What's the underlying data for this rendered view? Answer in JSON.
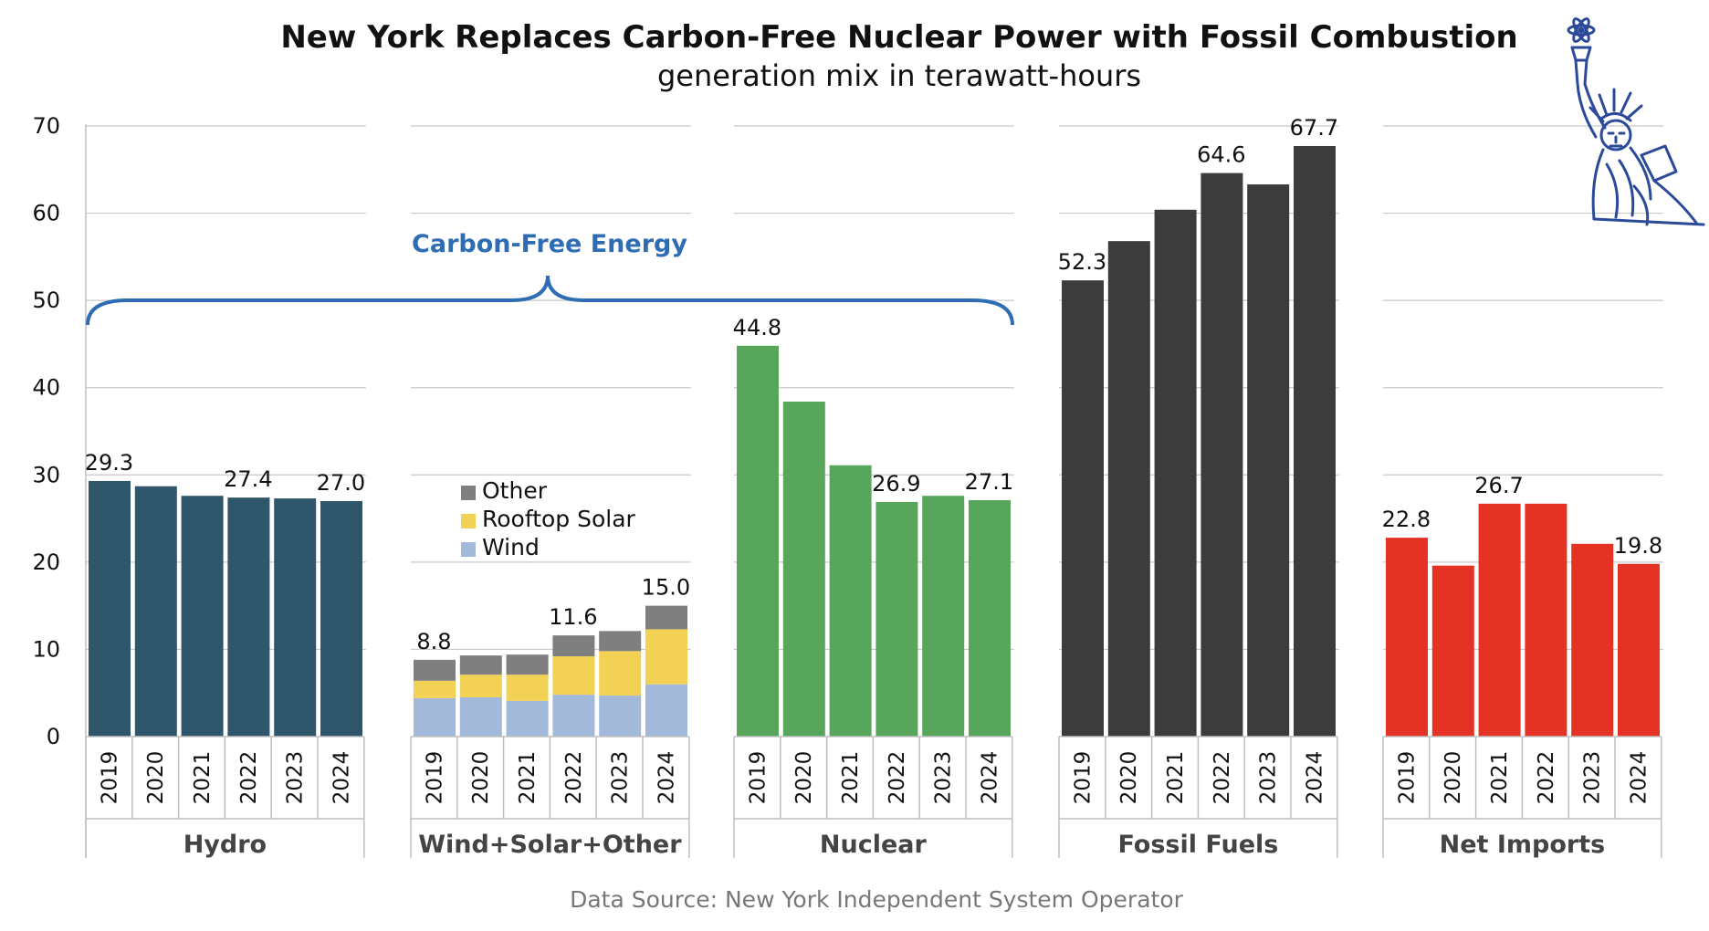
{
  "title": "New York Replaces Carbon-Free Nuclear Power with Fossil Combustion",
  "subtitle": "generation mix in terawatt-hours",
  "source": "Data Source: New York Independent System Operator",
  "annotation": {
    "text": "Carbon-Free Energy",
    "color": "#2E6DB4"
  },
  "logo": {
    "icon": "statue-of-liberty-atom-icon",
    "color": "#2C4A9A"
  },
  "chart_data": {
    "type": "bar",
    "ylim": [
      0,
      70
    ],
    "yticks": [
      "0",
      "10",
      "20",
      "30",
      "40",
      "50",
      "60",
      "70"
    ],
    "grid": true,
    "years": [
      "2019",
      "2020",
      "2021",
      "2022",
      "2023",
      "2024"
    ],
    "groups": [
      {
        "name": "Hydro",
        "color": "#2F566B",
        "values": [
          29.3,
          28.7,
          27.6,
          27.4,
          27.3,
          27.0
        ],
        "labels": [
          "29.3",
          "",
          "",
          "27.4",
          "",
          "27.0"
        ]
      },
      {
        "name": "Wind+Solar+Other",
        "stacked": true,
        "series": [
          {
            "name": "Wind",
            "color": "#A3B9DA",
            "values": [
              4.4,
              4.5,
              4.1,
              4.8,
              4.7,
              6.0
            ]
          },
          {
            "name": "Rooftop Solar",
            "color": "#F3D155",
            "values": [
              2.0,
              2.6,
              3.0,
              4.4,
              5.1,
              6.3
            ]
          },
          {
            "name": "Other",
            "color": "#7F7F7F",
            "values": [
              2.4,
              2.2,
              2.3,
              2.4,
              2.3,
              2.7
            ]
          }
        ],
        "labels": [
          "8.8",
          "",
          "",
          "11.6",
          "",
          "15.0"
        ]
      },
      {
        "name": "Nuclear",
        "color": "#58A65C",
        "values": [
          44.8,
          38.4,
          31.1,
          26.9,
          27.6,
          27.1
        ],
        "labels": [
          "44.8",
          "",
          "",
          "26.9",
          "",
          "27.1"
        ]
      },
      {
        "name": "Fossil Fuels",
        "color": "#3C3C3C",
        "values": [
          52.3,
          56.8,
          60.4,
          64.6,
          63.3,
          67.7
        ],
        "labels": [
          "52.3",
          "",
          "",
          "64.6",
          "",
          "67.7"
        ]
      },
      {
        "name": "Net Imports",
        "color": "#E43325",
        "values": [
          22.8,
          19.6,
          26.7,
          26.7,
          22.1,
          19.8
        ],
        "labels": [
          "22.8",
          "",
          "26.7",
          "",
          "",
          "19.8"
        ]
      }
    ],
    "legend": {
      "placement": "inside Wind+Solar+Other group",
      "entries": [
        "Other",
        "Rooftop Solar",
        "Wind"
      ]
    }
  }
}
